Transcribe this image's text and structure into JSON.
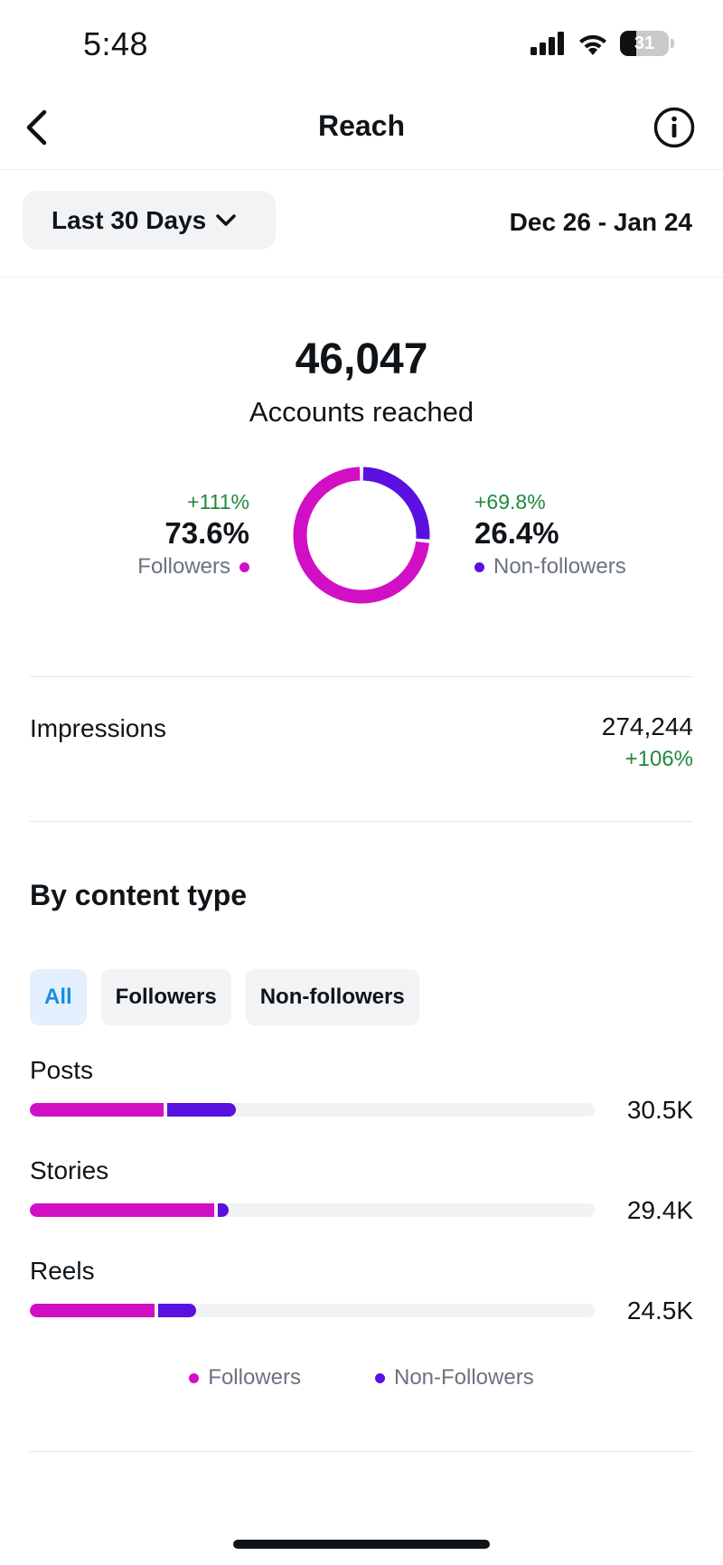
{
  "status_bar": {
    "time": "5:48",
    "battery": "31"
  },
  "nav": {
    "title": "Reach"
  },
  "date_filter": {
    "selected": "Last 30 Days",
    "range": "Dec 26 - Jan 24"
  },
  "summary": {
    "accounts_reached": "46,047",
    "accounts_reached_label": "Accounts reached",
    "followers": {
      "delta": "+111%",
      "percent": "73.6%",
      "label": "Followers",
      "share": 0.736
    },
    "non_followers": {
      "delta": "+69.8%",
      "percent": "26.4%",
      "label": "Non-followers",
      "share": 0.264
    }
  },
  "impressions": {
    "label": "Impressions",
    "value": "274,244",
    "delta": "+106%"
  },
  "by_content_type": {
    "title": "By content type",
    "tabs": [
      {
        "label": "All",
        "active": true
      },
      {
        "label": "Followers",
        "active": false
      },
      {
        "label": "Non-followers",
        "active": false
      }
    ],
    "rows": [
      {
        "label": "Posts",
        "value": "30.5K",
        "followers_fraction": 0.237,
        "non_followers_fraction": 0.127
      },
      {
        "label": "Stories",
        "value": "29.4K",
        "followers_fraction": 0.327,
        "non_followers_fraction": 0.025
      },
      {
        "label": "Reels",
        "value": "24.5K",
        "followers_fraction": 0.221,
        "non_followers_fraction": 0.073
      }
    ],
    "legend": {
      "followers": "Followers",
      "non_followers": "Non-Followers"
    }
  },
  "colors": {
    "followers": "#d10fc4",
    "non_followers": "#5a10e0",
    "positive": "#1f8a3b"
  },
  "icons": {
    "back": "chevron-left-icon",
    "info": "info-icon",
    "dropdown": "chevron-down-icon"
  }
}
